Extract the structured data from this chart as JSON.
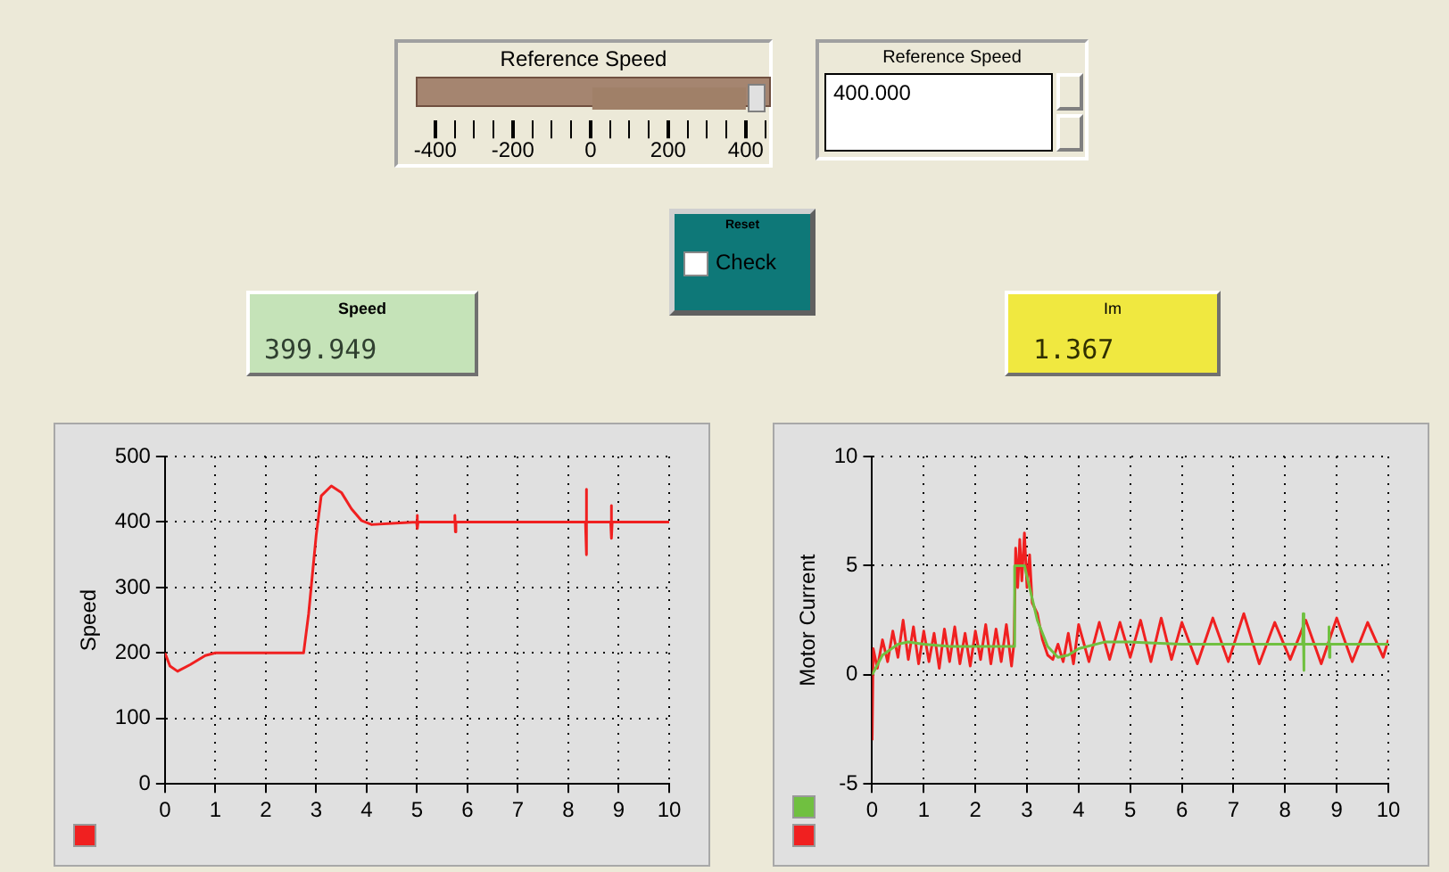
{
  "chart_data": [
    {
      "type": "bar",
      "orientation": "horizontal",
      "title": "Reference Speed",
      "categories": [
        null
      ],
      "values": [
        400
      ],
      "color": "#a08068",
      "xlim": [
        -450,
        460
      ],
      "xticks": [
        -400,
        {
          "value": -350,
          "label": null
        },
        {
          "value": -300,
          "label": null
        },
        {
          "value": -250,
          "label": null
        },
        -200,
        {
          "value": -150,
          "label": null
        },
        {
          "value": -100,
          "label": null
        },
        {
          "value": -50,
          "label": null
        },
        0,
        {
          "value": 50,
          "label": null
        },
        {
          "value": 100,
          "label": null
        },
        {
          "value": 150,
          "label": null
        },
        200,
        {
          "value": 250,
          "label": null
        },
        {
          "value": 300,
          "label": null
        },
        {
          "value": 350,
          "label": null
        },
        400,
        {
          "value": 450,
          "label": null
        }
      ]
    },
    {
      "type": "other",
      "annotations": [
        "Reference Speed",
        "400.000",
        "Reset",
        "Check",
        "Speed",
        "399.949",
        "Im",
        "1.367"
      ]
    },
    {
      "type": "line",
      "ylabel": "Speed",
      "xlim": [
        0,
        10
      ],
      "xticks": [
        0,
        1,
        2,
        3,
        4,
        5,
        6,
        7,
        8,
        9,
        10
      ],
      "ylim": [
        0,
        500
      ],
      "yticks": [
        0,
        100,
        200,
        300,
        400,
        500
      ],
      "grid": true,
      "marker": "none",
      "line_style": "solid",
      "series": [
        {
          "color": "#f02020",
          "x": [
            0,
            0.1,
            0.25,
            0.5,
            0.8,
            1,
            2.75,
            2.85,
            3,
            3.1,
            3.3,
            3.5,
            3.7,
            3.9,
            4.1,
            4.5,
            4.99,
            5,
            5.01,
            5.02,
            5.74,
            5.75,
            5.76,
            5.77,
            8.34,
            8.35,
            8.36,
            8.37,
            8.84,
            8.85,
            8.86,
            8.87,
            10
          ],
          "values": [
            200,
            180,
            172,
            182,
            196,
            200,
            200,
            260,
            380,
            440,
            455,
            445,
            420,
            402,
            396,
            398,
            400,
            410,
            390,
            400,
            400,
            410,
            385,
            400,
            400,
            450,
            350,
            400,
            400,
            425,
            375,
            400,
            400
          ]
        }
      ]
    },
    {
      "type": "line",
      "ylabel": "Motor Current",
      "xlim": [
        0,
        10
      ],
      "xticks": [
        0,
        1,
        2,
        3,
        4,
        5,
        6,
        7,
        8,
        9,
        10
      ],
      "ylim": [
        -5,
        10
      ],
      "yticks": [
        -5,
        0,
        5,
        10
      ],
      "grid": true,
      "marker": "none",
      "line_style": "solid",
      "series": [
        {
          "color": "#70c040",
          "x": [
            0,
            0.2,
            0.5,
            0.7,
            1,
            1.5,
            2.75,
            2.76,
            2.95,
            3.05,
            3.2,
            3.4,
            3.6,
            3.8,
            4,
            4.5,
            5,
            6,
            8.34,
            8.35,
            8.36,
            8.37,
            8.84,
            8.85,
            8.86,
            8.87,
            10
          ],
          "values": [
            0,
            0.9,
            1.4,
            1.5,
            1.4,
            1.3,
            1.3,
            5,
            5,
            4,
            2.5,
            1.3,
            0.8,
            0.9,
            1.2,
            1.5,
            1.5,
            1.4,
            1.4,
            2.8,
            0.2,
            1.4,
            1.4,
            2.2,
            0.8,
            1.4,
            1.4
          ]
        },
        {
          "color": "#f02020",
          "x": [
            0,
            0.02,
            0.1,
            0.2,
            0.3,
            0.4,
            0.5,
            0.6,
            0.7,
            0.8,
            0.9,
            1,
            1.1,
            1.2,
            1.3,
            1.4,
            1.5,
            1.6,
            1.7,
            1.8,
            1.9,
            2,
            2.1,
            2.2,
            2.3,
            2.4,
            2.5,
            2.6,
            2.7,
            2.75,
            2.78,
            2.82,
            2.86,
            2.9,
            2.95,
            3,
            3.05,
            3.1,
            3.2,
            3.3,
            3.4,
            3.5,
            3.6,
            3.7,
            3.8,
            3.9,
            4,
            4.2,
            4.4,
            4.6,
            4.8,
            5,
            5.2,
            5.4,
            5.6,
            5.8,
            6,
            6.3,
            6.6,
            6.9,
            7.2,
            7.5,
            7.8,
            8.1,
            8.4,
            8.7,
            9,
            9.3,
            9.6,
            9.9,
            10
          ],
          "values": [
            -3,
            1.2,
            0.3,
            1.6,
            0.6,
            2,
            0.8,
            2.5,
            0.7,
            2.2,
            0.5,
            2,
            0.6,
            1.9,
            0.3,
            2.1,
            0.6,
            2.2,
            0.5,
            1.9,
            0.4,
            2,
            0.7,
            2.3,
            0.5,
            2.1,
            0.6,
            2.3,
            0.4,
            1.5,
            5.8,
            4,
            6.2,
            4.3,
            6.5,
            4,
            5.5,
            3.3,
            2.8,
            1.6,
            0.9,
            0.7,
            1.4,
            0.6,
            1.9,
            0.5,
            2.3,
            0.6,
            2.4,
            0.7,
            2.4,
            0.8,
            2.5,
            0.6,
            2.6,
            0.7,
            2.4,
            0.5,
            2.6,
            0.6,
            2.8,
            0.5,
            2.4,
            0.7,
            2.5,
            0.5,
            2.6,
            0.6,
            2.4,
            0.8,
            1.6
          ]
        }
      ]
    }
  ]
}
